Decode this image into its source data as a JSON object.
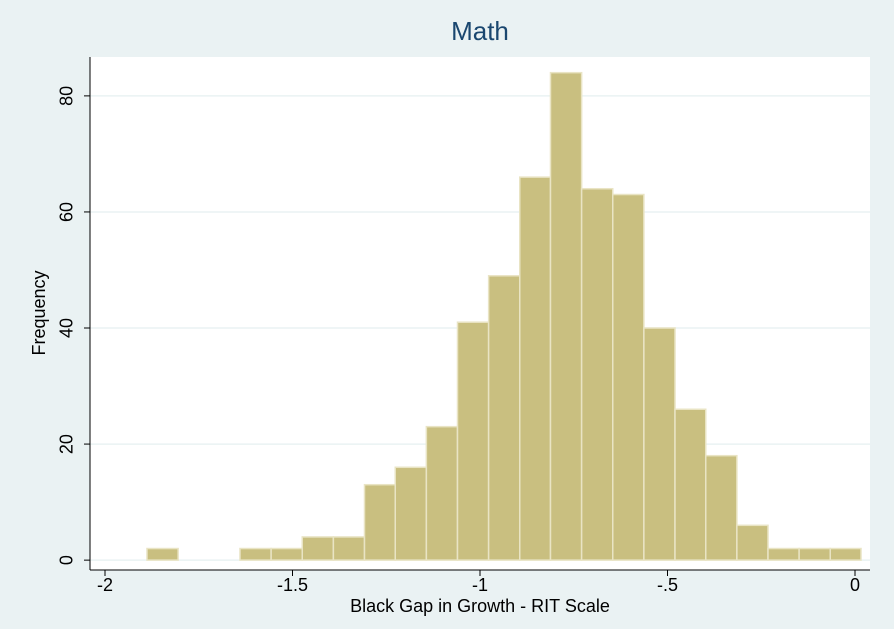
{
  "chart_data": {
    "type": "histogram",
    "title": "Math",
    "x_label": "Black Gap in Growth - RIT Scale",
    "y_label": "Frequency",
    "bins": [
      -1.888,
      -1.805,
      -1.722,
      -1.64,
      -1.557,
      -1.474,
      -1.391,
      -1.308,
      -1.226,
      -1.143,
      -1.06,
      -0.977,
      -0.894,
      -0.812,
      -0.729,
      -0.646,
      -0.563,
      -0.48,
      -0.398,
      -0.315,
      -0.232,
      -0.149,
      -0.066,
      0.016
    ],
    "values": [
      2,
      0,
      0,
      2,
      2,
      4,
      4,
      13,
      16,
      23,
      41,
      49,
      66,
      84,
      64,
      63,
      40,
      26,
      18,
      6,
      2,
      2,
      2
    ],
    "color": "#c9bf80",
    "xlim": [
      -2.04,
      0.04
    ],
    "xticks": [
      -2,
      -1.5,
      -1,
      {
        "value": -0.5,
        "label": "-.5"
      },
      0
    ],
    "ylim": [
      -1.7,
      86.7
    ],
    "yticks": [
      0,
      20,
      40,
      60,
      80
    ],
    "grid": true
  }
}
